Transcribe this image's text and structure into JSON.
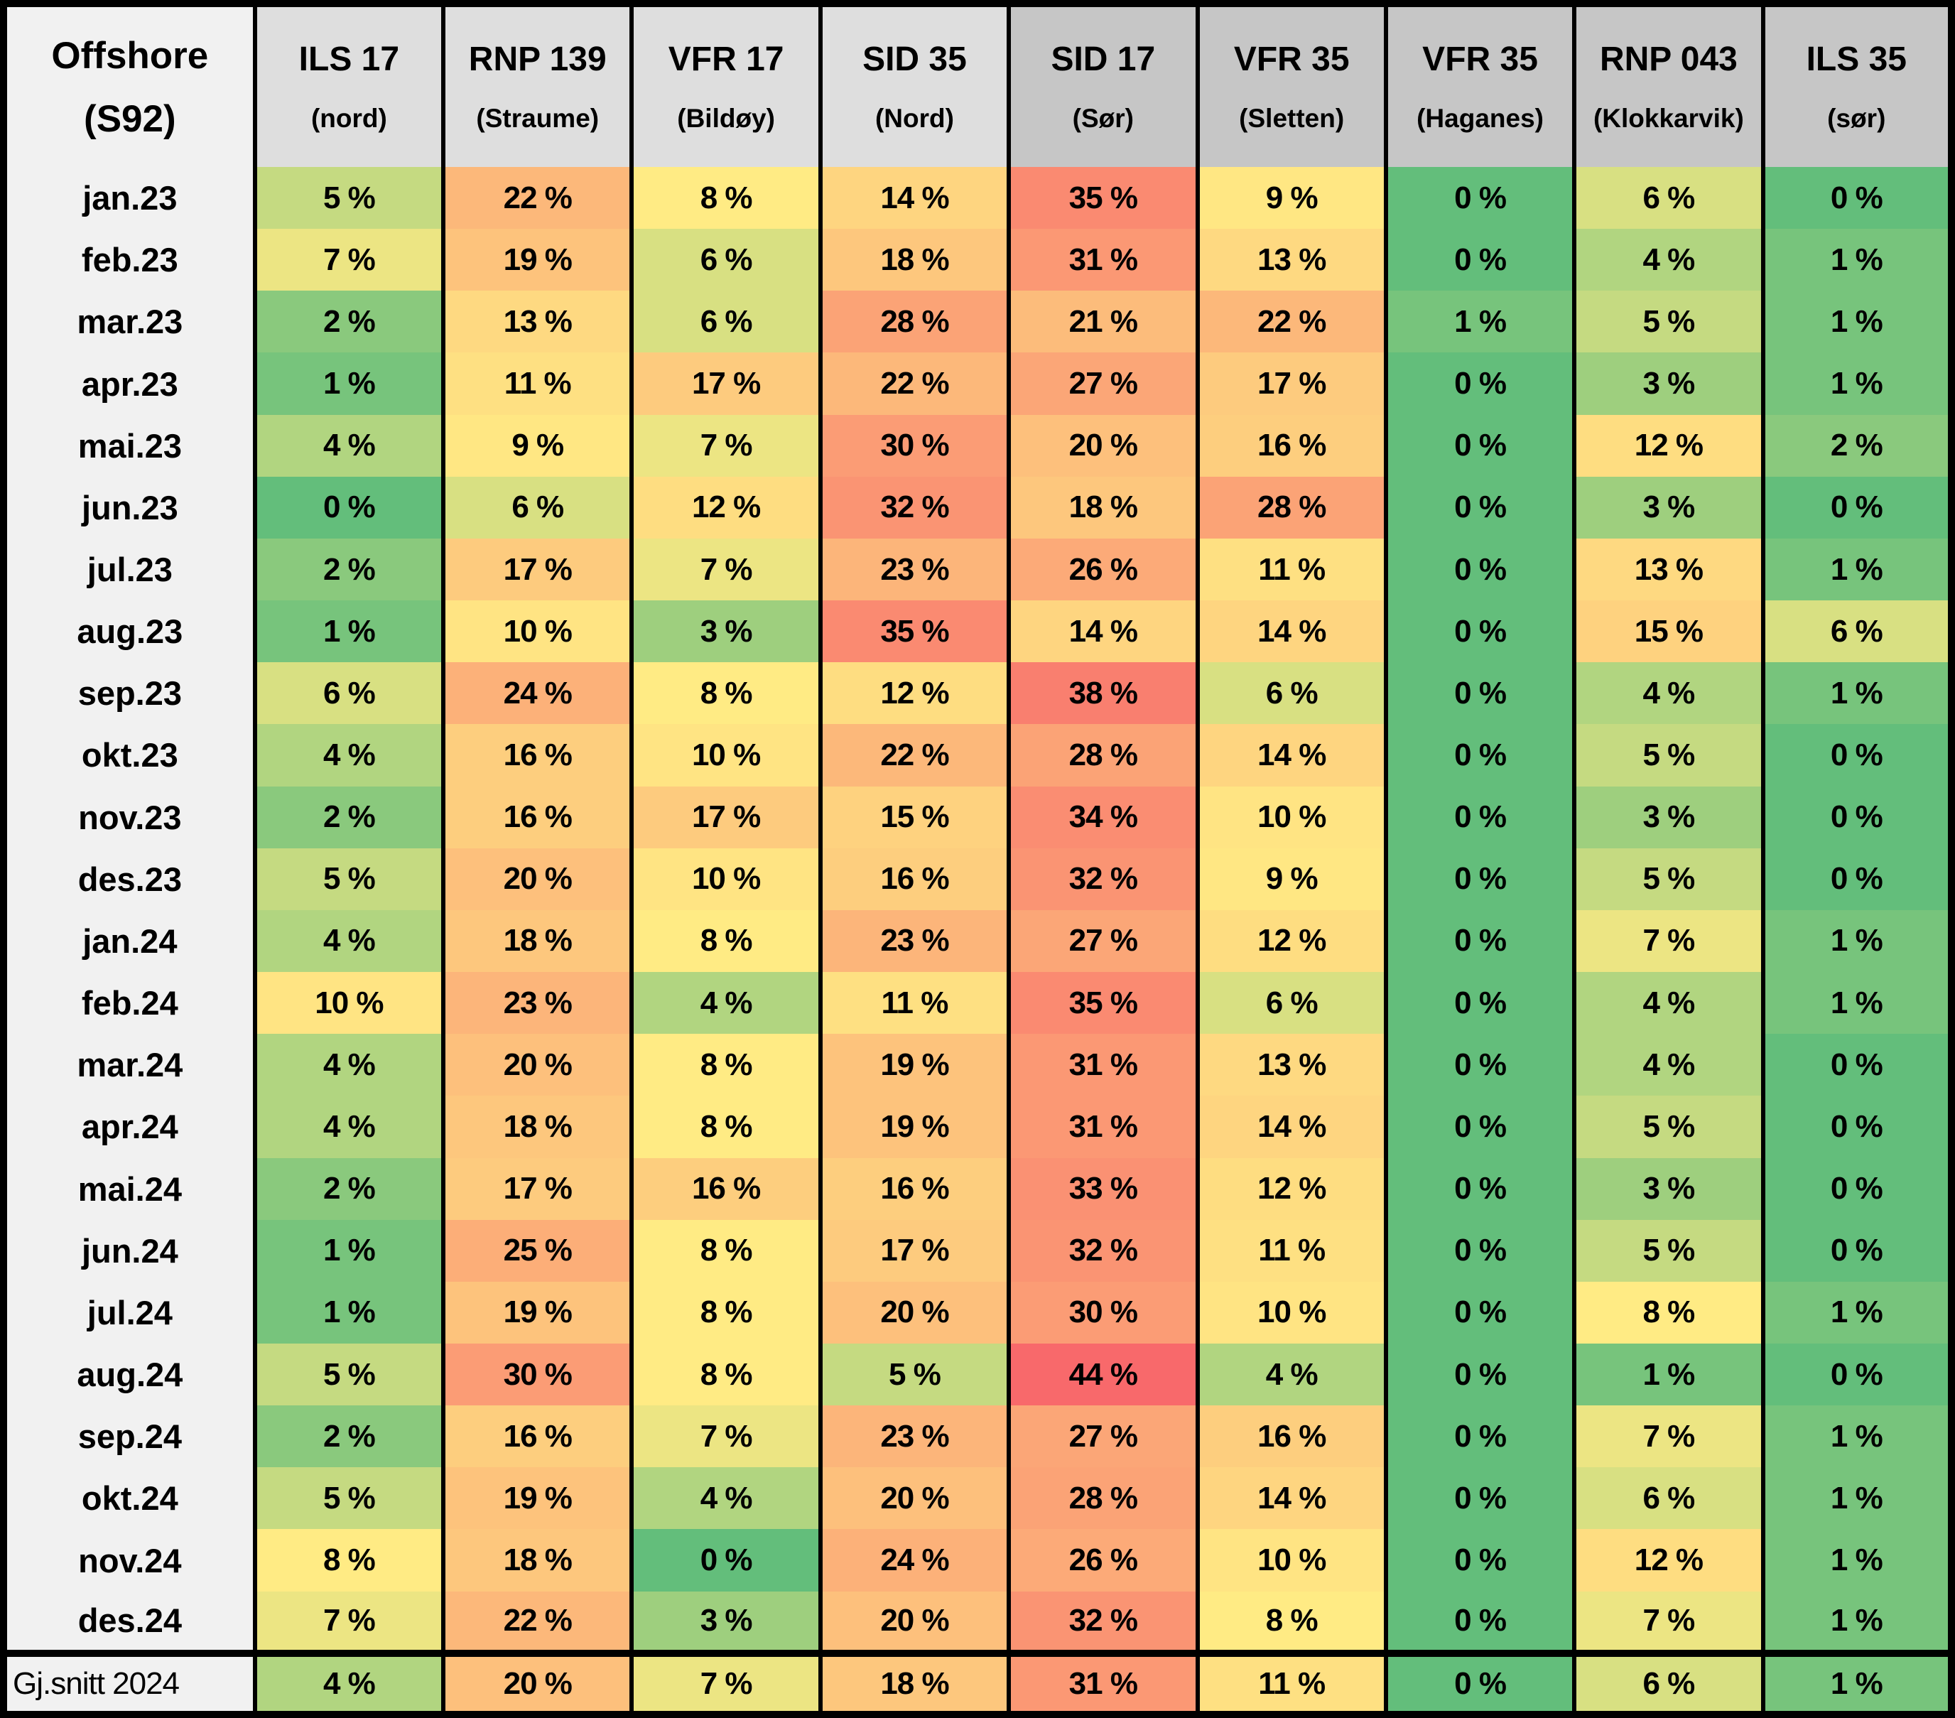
{
  "table": {
    "corner": {
      "line1": "Offshore",
      "line2": "(S92)"
    },
    "columns": [
      {
        "code": "ILS 17",
        "place": "(nord)",
        "shade": "light"
      },
      {
        "code": "RNP 139",
        "place": "(Straume)",
        "shade": "light"
      },
      {
        "code": "VFR 17",
        "place": "(Bildøy)",
        "shade": "light"
      },
      {
        "code": "SID 35",
        "place": "(Nord)",
        "shade": "light"
      },
      {
        "code": "SID 17",
        "place": "(Sør)",
        "shade": "dark"
      },
      {
        "code": "VFR 35",
        "place": "(Sletten)",
        "shade": "dark"
      },
      {
        "code": "VFR 35",
        "place": "(Haganes)",
        "shade": "dark"
      },
      {
        "code": "RNP 043",
        "place": "(Klokkarvik)",
        "shade": "dark"
      },
      {
        "code": "ILS 35",
        "place": "(sør)",
        "shade": "dark"
      }
    ],
    "value_suffix": " %",
    "colors": {
      "label_bg": "#F1F1F1",
      "header_light": "#DEDEDE",
      "header_dark": "#C6C6C6",
      "border": "#000000",
      "text": "#000000"
    }
  },
  "chart_data": {
    "type": "heatmap",
    "title": "Offshore (S92)",
    "unit": "%",
    "columns": [
      "ILS 17 (nord)",
      "RNP 139 (Straume)",
      "VFR 17 (Bildøy)",
      "SID 35 (Nord)",
      "SID 17 (Sør)",
      "VFR 35 (Sletten)",
      "VFR 35 (Haganes)",
      "RNP 043 (Klokkarvik)",
      "ILS 35 (sør)"
    ],
    "rows": [
      "jan.23",
      "feb.23",
      "mar.23",
      "apr.23",
      "mai.23",
      "jun.23",
      "jul.23",
      "aug.23",
      "sep.23",
      "okt.23",
      "nov.23",
      "des.23",
      "jan.24",
      "feb.24",
      "mar.24",
      "apr.24",
      "mai.24",
      "jun.24",
      "jul.24",
      "aug.24",
      "sep.24",
      "okt.24",
      "nov.24",
      "des.24"
    ],
    "values": [
      [
        5,
        22,
        8,
        14,
        35,
        9,
        0,
        6,
        0
      ],
      [
        7,
        19,
        6,
        18,
        31,
        13,
        0,
        4,
        1
      ],
      [
        2,
        13,
        6,
        28,
        21,
        22,
        1,
        5,
        1
      ],
      [
        1,
        11,
        17,
        22,
        27,
        17,
        0,
        3,
        1
      ],
      [
        4,
        9,
        7,
        30,
        20,
        16,
        0,
        12,
        2
      ],
      [
        0,
        6,
        12,
        32,
        18,
        28,
        0,
        3,
        0
      ],
      [
        2,
        17,
        7,
        23,
        26,
        11,
        0,
        13,
        1
      ],
      [
        1,
        10,
        3,
        35,
        14,
        14,
        0,
        15,
        6
      ],
      [
        6,
        24,
        8,
        12,
        38,
        6,
        0,
        4,
        1
      ],
      [
        4,
        16,
        10,
        22,
        28,
        14,
        0,
        5,
        0
      ],
      [
        2,
        16,
        17,
        15,
        34,
        10,
        0,
        3,
        0
      ],
      [
        5,
        20,
        10,
        16,
        32,
        9,
        0,
        5,
        0
      ],
      [
        4,
        18,
        8,
        23,
        27,
        12,
        0,
        7,
        1
      ],
      [
        10,
        23,
        4,
        11,
        35,
        6,
        0,
        4,
        1
      ],
      [
        4,
        20,
        8,
        19,
        31,
        13,
        0,
        4,
        0
      ],
      [
        4,
        18,
        8,
        19,
        31,
        14,
        0,
        5,
        0
      ],
      [
        2,
        17,
        16,
        16,
        33,
        12,
        0,
        3,
        0
      ],
      [
        1,
        25,
        8,
        17,
        32,
        11,
        0,
        5,
        0
      ],
      [
        1,
        19,
        8,
        20,
        30,
        10,
        0,
        8,
        1
      ],
      [
        5,
        30,
        8,
        5,
        44,
        4,
        0,
        1,
        0
      ],
      [
        2,
        16,
        7,
        23,
        27,
        16,
        0,
        7,
        1
      ],
      [
        5,
        19,
        4,
        20,
        28,
        14,
        0,
        6,
        1
      ],
      [
        8,
        18,
        0,
        24,
        26,
        10,
        0,
        12,
        1
      ],
      [
        7,
        22,
        3,
        20,
        32,
        8,
        0,
        7,
        1
      ]
    ],
    "summary": {
      "label": "Gj.snitt 2024",
      "values": [
        4,
        20,
        7,
        18,
        31,
        11,
        0,
        6,
        1
      ]
    },
    "color_scale": {
      "type": "3-color",
      "mid_rule": "median",
      "min_value": 0,
      "mid_value": 8,
      "max_value": 44,
      "min_color": "#63BE7B",
      "mid_color": "#FFEB84",
      "max_color": "#F8696B"
    },
    "legend_position": "none",
    "grid": false
  }
}
